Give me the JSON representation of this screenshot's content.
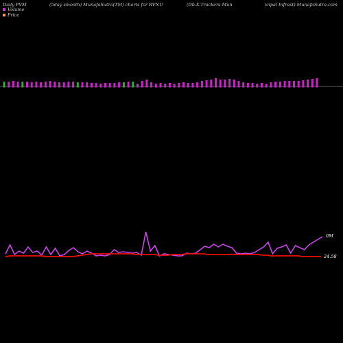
{
  "header": {
    "left": "Daily PVM",
    "center1": "(5day smooth) MunafaSutra(TM) charts for RVNU",
    "center2": "(Db-X-Trackers Mun",
    "right": "icipal Infrast) MunafaSutra.com"
  },
  "legend": [
    {
      "label": "Volume",
      "color": "#cc33cc"
    },
    {
      "label": "Price",
      "color": "#ff9966"
    }
  ],
  "colors": {
    "background": "#000000",
    "volume_bar": "#cc22cc",
    "volume_bar_down": "#33aa33",
    "volume_line": "#cc44ee",
    "price_line": "#ee1100",
    "baseline": "#bbbbbb"
  },
  "chart_data": {
    "type": "bar",
    "volume_bars": {
      "values": [
        7,
        7,
        8,
        7,
        7,
        7,
        6,
        7,
        6,
        7,
        8,
        7,
        6,
        6,
        7,
        7,
        6,
        6,
        6,
        5,
        5,
        4,
        5,
        5,
        5,
        6,
        6,
        7,
        7,
        4,
        8,
        10,
        6,
        4,
        5,
        4,
        5,
        4,
        5,
        6,
        5,
        5,
        6,
        8,
        9,
        10,
        12,
        10,
        10,
        11,
        10,
        8,
        6,
        5,
        5,
        4,
        5,
        4,
        6,
        7,
        7,
        8,
        8,
        8,
        8,
        9,
        10,
        11,
        12
      ],
      "down_days": [
        0,
        4,
        16,
        26,
        28
      ]
    },
    "volume_line": {
      "label": "0M",
      "values": [
        370,
        357,
        371,
        366,
        369,
        360,
        368,
        366,
        372,
        360,
        371,
        362,
        373,
        371,
        365,
        361,
        367,
        370,
        366,
        369,
        373,
        372,
        373,
        371,
        364,
        368,
        367,
        368,
        369,
        368,
        372,
        338,
        366,
        358,
        373,
        370,
        371,
        372,
        373,
        373,
        369,
        370,
        369,
        364,
        359,
        361,
        356,
        360,
        356,
        359,
        361,
        369,
        370,
        369,
        370,
        368,
        364,
        360,
        353,
        370,
        362,
        360,
        357,
        369,
        358,
        361,
        364,
        357,
        353,
        349,
        345
      ]
    },
    "price_line": {
      "label": "24.58",
      "values": [
        374,
        373,
        373,
        373,
        373,
        373,
        373,
        373,
        373,
        374,
        374,
        374,
        374,
        374,
        374,
        374,
        373,
        372,
        371,
        370,
        370,
        370,
        370,
        370,
        370,
        370,
        370,
        370,
        370,
        371,
        371,
        371,
        371,
        371,
        372,
        372,
        372,
        371,
        371,
        371,
        370,
        370,
        370,
        370,
        370,
        371,
        371,
        371,
        371,
        371,
        371,
        371,
        371,
        371,
        371,
        371,
        371,
        372,
        372,
        373,
        373,
        373,
        373,
        373,
        373,
        373,
        374,
        374,
        374,
        374,
        374
      ]
    }
  }
}
